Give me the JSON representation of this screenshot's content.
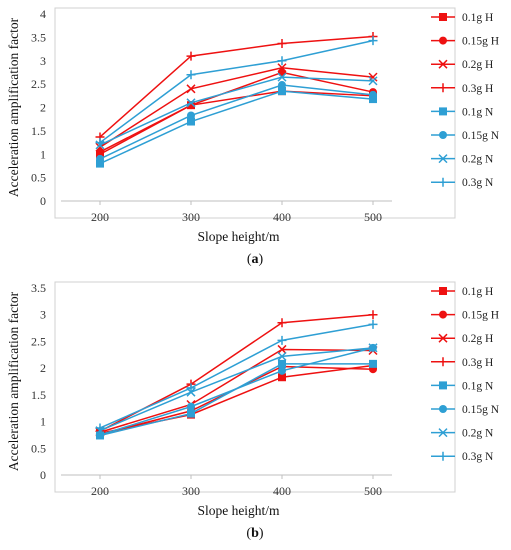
{
  "chart_data": [
    {
      "type": "line",
      "caption": "(a)",
      "caption_letter": "a",
      "xlabel": "Slope height/m",
      "ylabel": "Acceleration amplification factor",
      "x": [
        200,
        300,
        400,
        500
      ],
      "xlim": [
        200,
        500
      ],
      "ylim": [
        0,
        4
      ],
      "yticks": [
        "0",
        "0.5",
        "1",
        "1.5",
        "2",
        "2.5",
        "3",
        "3.5",
        "4"
      ],
      "yticks_values": [
        0,
        0.5,
        1,
        1.5,
        2,
        2.5,
        3,
        3.5,
        4
      ],
      "grid": false,
      "legend_position": "right",
      "series": [
        {
          "name": "0.1g H",
          "color": "#ee1111",
          "marker": "square",
          "values": [
            1.0,
            2.05,
            2.35,
            2.25
          ]
        },
        {
          "name": "0.15g H",
          "color": "#ee1111",
          "marker": "circle",
          "values": [
            1.05,
            2.05,
            2.75,
            2.33
          ]
        },
        {
          "name": "0.2g H",
          "color": "#ee1111",
          "marker": "x",
          "values": [
            1.15,
            2.4,
            2.85,
            2.65
          ]
        },
        {
          "name": "0.3g H",
          "color": "#ee1111",
          "marker": "plus",
          "values": [
            1.37,
            3.1,
            3.37,
            3.52
          ]
        },
        {
          "name": "0.1g N",
          "color": "#2e9fd4",
          "marker": "square",
          "values": [
            0.8,
            1.7,
            2.35,
            2.18
          ]
        },
        {
          "name": "0.15g N",
          "color": "#2e9fd4",
          "marker": "circle",
          "values": [
            0.9,
            1.83,
            2.48,
            2.27
          ]
        },
        {
          "name": "0.2g N",
          "color": "#2e9fd4",
          "marker": "x",
          "values": [
            1.2,
            2.1,
            2.65,
            2.57
          ]
        },
        {
          "name": "0.3g N",
          "color": "#2e9fd4",
          "marker": "plus",
          "values": [
            1.25,
            2.7,
            3.0,
            3.43
          ]
        }
      ]
    },
    {
      "type": "line",
      "caption": "(b)",
      "caption_letter": "b",
      "xlabel": "Slope height/m",
      "ylabel": "Acceleration amplification factor",
      "x": [
        200,
        300,
        400,
        500
      ],
      "xlim": [
        200,
        500
      ],
      "ylim": [
        0,
        3.5
      ],
      "yticks": [
        "0",
        "0.5",
        "1",
        "1.5",
        "2",
        "2.5",
        "3",
        "3.5"
      ],
      "yticks_values": [
        0,
        0.5,
        1,
        1.5,
        2,
        2.5,
        3,
        3.5
      ],
      "grid": false,
      "legend_position": "right",
      "series": [
        {
          "name": "0.1g H",
          "color": "#ee1111",
          "marker": "square",
          "values": [
            0.78,
            1.13,
            1.83,
            2.05
          ]
        },
        {
          "name": "0.15g H",
          "color": "#ee1111",
          "marker": "circle",
          "values": [
            0.76,
            1.2,
            2.03,
            1.98
          ]
        },
        {
          "name": "0.2g H",
          "color": "#ee1111",
          "marker": "x",
          "values": [
            0.8,
            1.32,
            2.35,
            2.33
          ]
        },
        {
          "name": "0.3g H",
          "color": "#ee1111",
          "marker": "plus",
          "values": [
            0.82,
            1.7,
            2.85,
            3.0
          ]
        },
        {
          "name": "0.1g N",
          "color": "#2e9fd4",
          "marker": "square",
          "values": [
            0.74,
            1.15,
            2.08,
            2.08
          ]
        },
        {
          "name": "0.15g N",
          "color": "#2e9fd4",
          "marker": "circle",
          "values": [
            0.75,
            1.28,
            1.95,
            2.38
          ]
        },
        {
          "name": "0.2g N",
          "color": "#2e9fd4",
          "marker": "x",
          "values": [
            0.83,
            1.55,
            2.22,
            2.38
          ]
        },
        {
          "name": "0.3g N",
          "color": "#2e9fd4",
          "marker": "plus",
          "values": [
            0.88,
            1.63,
            2.52,
            2.82
          ]
        }
      ]
    }
  ]
}
